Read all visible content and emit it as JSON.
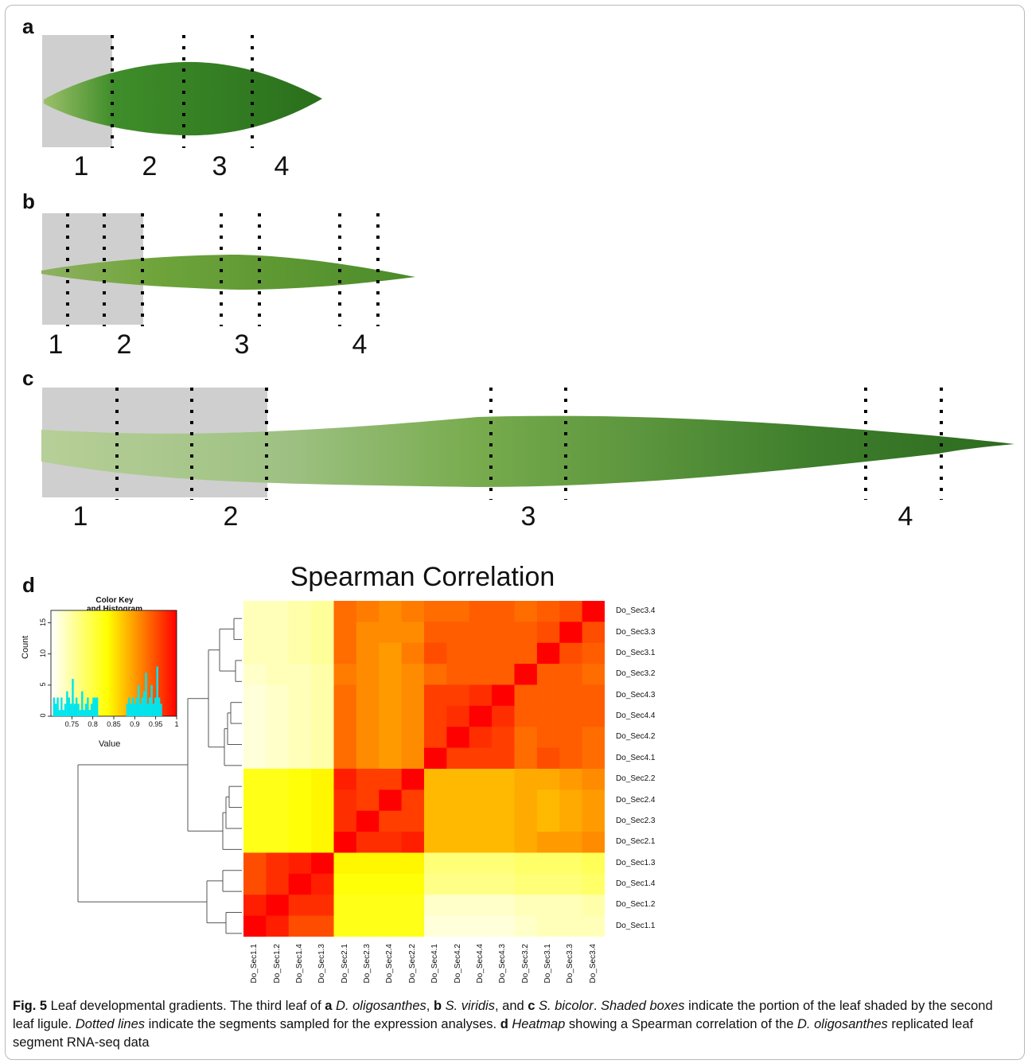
{
  "panels": {
    "a": {
      "letter": "a",
      "segment_labels": [
        "1",
        "2",
        "3",
        "4"
      ]
    },
    "b": {
      "letter": "b",
      "segment_labels": [
        "1",
        "2",
        "3",
        "4"
      ]
    },
    "c": {
      "letter": "c",
      "segment_labels": [
        "1",
        "2",
        "3",
        "4"
      ]
    },
    "d": {
      "letter": "d"
    }
  },
  "heatmap": {
    "title": "Spearman Correlation",
    "row_labels": [
      "Do_Sec3.4",
      "Do_Sec3.3",
      "Do_Sec3.1",
      "Do_Sec3.2",
      "Do_Sec4.3",
      "Do_Sec4.4",
      "Do_Sec4.2",
      "Do_Sec4.1",
      "Do_Sec2.2",
      "Do_Sec2.4",
      "Do_Sec2.3",
      "Do_Sec2.1",
      "Do_Sec1.3",
      "Do_Sec1.4",
      "Do_Sec1.2",
      "Do_Sec1.1"
    ],
    "col_labels": [
      "Do_Sec1.1",
      "Do_Sec1.2",
      "Do_Sec1.4",
      "Do_Sec1.3",
      "Do_Sec2.1",
      "Do_Sec2.3",
      "Do_Sec2.4",
      "Do_Sec2.2",
      "Do_Sec4.1",
      "Do_Sec4.2",
      "Do_Sec4.4",
      "Do_Sec4.3",
      "Do_Sec3.2",
      "Do_Sec3.1",
      "Do_Sec3.3",
      "Do_Sec3.4"
    ],
    "color_low": "#ffffff",
    "color_mid": "#ffff00",
    "color_high": "#ff0000"
  },
  "color_key": {
    "title_line1": "Color Key",
    "title_line2": "and Histogram",
    "ylabel": "Count",
    "xlabel": "Value",
    "y_ticks": [
      "0",
      "5",
      "10",
      "15"
    ],
    "x_ticks": [
      "0.75",
      "0.8",
      "0.85",
      "0.9",
      "0.95",
      "1"
    ]
  },
  "caption": {
    "fig_label": "Fig. 5",
    "text_1": " Leaf developmental gradients. The third leaf of ",
    "a": "a",
    "sp_a": " D. oligosanthes",
    "sep1": ", ",
    "b": "b",
    "sp_b": " S. viridis",
    "sep2": ", and ",
    "c": "c",
    "sp_c": " S. bicolor",
    "sep3": ". ",
    "shaded": "Shaded boxes",
    "text_2": " indicate the portion of the leaf shaded by the second leaf ligule. ",
    "dotted": "Dotted lines",
    "text_3": " indicate the segments sampled for the expression analyses. ",
    "d": "d",
    "sp_space": " ",
    "heatmap_word": "Heatmap",
    "text_4": " showing a Spearman correlation of the ",
    "sp_d": "D. oligosanthes",
    "text_5": " replicated leaf segment RNA-seq data"
  },
  "chart_data": {
    "type": "heatmap",
    "title": "Spearman Correlation",
    "rows": [
      "Do_Sec3.4",
      "Do_Sec3.3",
      "Do_Sec3.1",
      "Do_Sec3.2",
      "Do_Sec4.3",
      "Do_Sec4.4",
      "Do_Sec4.2",
      "Do_Sec4.1",
      "Do_Sec2.2",
      "Do_Sec2.4",
      "Do_Sec2.3",
      "Do_Sec2.1",
      "Do_Sec1.3",
      "Do_Sec1.4",
      "Do_Sec1.2",
      "Do_Sec1.1"
    ],
    "columns": [
      "Do_Sec1.1",
      "Do_Sec1.2",
      "Do_Sec1.4",
      "Do_Sec1.3",
      "Do_Sec2.1",
      "Do_Sec2.3",
      "Do_Sec2.4",
      "Do_Sec2.2",
      "Do_Sec4.1",
      "Do_Sec4.2",
      "Do_Sec4.4",
      "Do_Sec4.3",
      "Do_Sec3.2",
      "Do_Sec3.1",
      "Do_Sec3.3",
      "Do_Sec3.4"
    ],
    "values": [
      [
        0.72,
        0.72,
        0.73,
        0.74,
        0.93,
        0.92,
        0.91,
        0.92,
        0.93,
        0.93,
        0.94,
        0.94,
        0.93,
        0.94,
        0.95,
        1.0
      ],
      [
        0.72,
        0.72,
        0.73,
        0.74,
        0.93,
        0.91,
        0.91,
        0.91,
        0.94,
        0.94,
        0.94,
        0.94,
        0.94,
        0.95,
        1.0,
        0.95
      ],
      [
        0.72,
        0.72,
        0.73,
        0.74,
        0.93,
        0.91,
        0.9,
        0.92,
        0.95,
        0.94,
        0.94,
        0.94,
        0.94,
        1.0,
        0.95,
        0.94
      ],
      [
        0.71,
        0.72,
        0.72,
        0.73,
        0.92,
        0.91,
        0.9,
        0.91,
        0.93,
        0.94,
        0.94,
        0.94,
        1.0,
        0.94,
        0.94,
        0.93
      ],
      [
        0.7,
        0.71,
        0.72,
        0.73,
        0.93,
        0.91,
        0.9,
        0.91,
        0.96,
        0.96,
        0.97,
        1.0,
        0.94,
        0.94,
        0.94,
        0.94
      ],
      [
        0.7,
        0.71,
        0.72,
        0.73,
        0.93,
        0.91,
        0.9,
        0.91,
        0.96,
        0.97,
        1.0,
        0.97,
        0.94,
        0.94,
        0.94,
        0.94
      ],
      [
        0.7,
        0.71,
        0.72,
        0.73,
        0.93,
        0.91,
        0.9,
        0.91,
        0.96,
        1.0,
        0.97,
        0.96,
        0.93,
        0.94,
        0.94,
        0.93
      ],
      [
        0.7,
        0.71,
        0.72,
        0.73,
        0.93,
        0.91,
        0.9,
        0.91,
        1.0,
        0.96,
        0.96,
        0.96,
        0.93,
        0.95,
        0.94,
        0.93
      ],
      [
        0.82,
        0.82,
        0.83,
        0.84,
        0.98,
        0.96,
        0.96,
        1.0,
        0.88,
        0.88,
        0.88,
        0.88,
        0.89,
        0.89,
        0.9,
        0.91
      ],
      [
        0.82,
        0.82,
        0.83,
        0.84,
        0.97,
        0.96,
        1.0,
        0.96,
        0.88,
        0.88,
        0.88,
        0.88,
        0.89,
        0.88,
        0.89,
        0.9
      ],
      [
        0.82,
        0.82,
        0.83,
        0.84,
        0.97,
        1.0,
        0.96,
        0.96,
        0.88,
        0.88,
        0.88,
        0.88,
        0.89,
        0.88,
        0.89,
        0.9
      ],
      [
        0.82,
        0.82,
        0.83,
        0.84,
        1.0,
        0.97,
        0.97,
        0.98,
        0.88,
        0.88,
        0.88,
        0.88,
        0.89,
        0.9,
        0.9,
        0.91
      ],
      [
        0.95,
        0.97,
        0.98,
        1.0,
        0.84,
        0.84,
        0.84,
        0.84,
        0.76,
        0.76,
        0.76,
        0.76,
        0.77,
        0.77,
        0.77,
        0.78
      ],
      [
        0.95,
        0.97,
        1.0,
        0.98,
        0.83,
        0.83,
        0.83,
        0.83,
        0.75,
        0.75,
        0.75,
        0.75,
        0.76,
        0.76,
        0.76,
        0.77
      ],
      [
        0.98,
        1.0,
        0.97,
        0.97,
        0.82,
        0.82,
        0.82,
        0.82,
        0.71,
        0.71,
        0.71,
        0.71,
        0.72,
        0.72,
        0.72,
        0.73
      ],
      [
        1.0,
        0.98,
        0.95,
        0.95,
        0.82,
        0.82,
        0.82,
        0.82,
        0.7,
        0.7,
        0.7,
        0.7,
        0.71,
        0.72,
        0.72,
        0.72
      ]
    ],
    "color_key_range": [
      0.7,
      1.0
    ],
    "grid": false
  }
}
